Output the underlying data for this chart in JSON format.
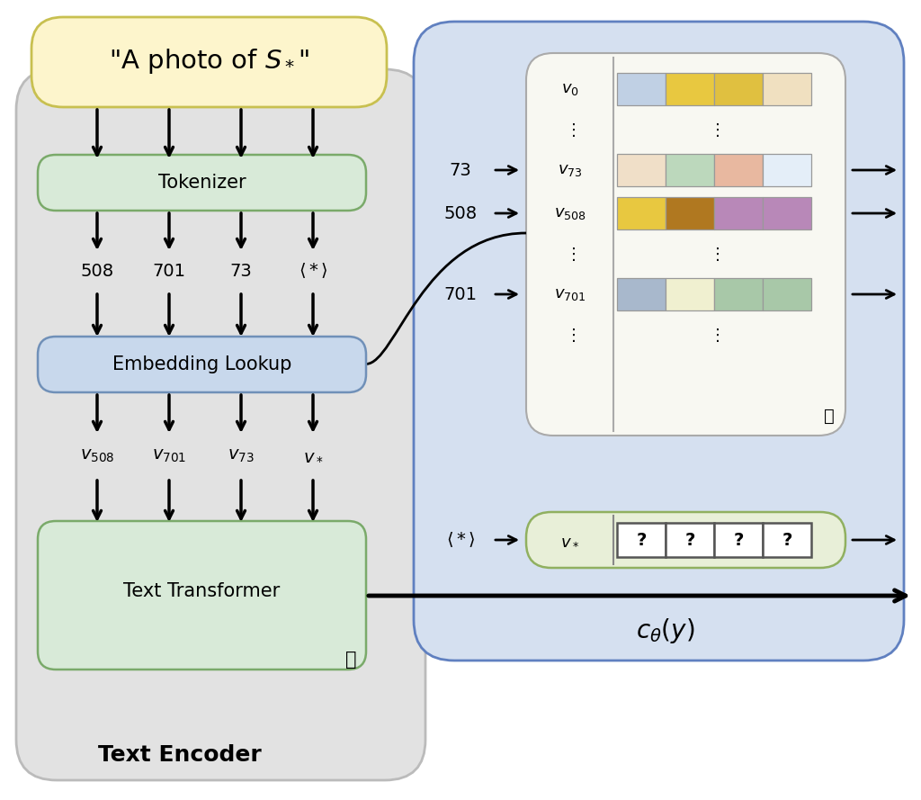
{
  "bg_color": "#ffffff",
  "text_encoder_bg": "#e2e2e2",
  "text_encoder_border": "#bbbbbb",
  "tokenizer_color": "#d8ead8",
  "tokenizer_border": "#7aaa6a",
  "embedding_color": "#c8d8ec",
  "embedding_border": "#7090b8",
  "text_transformer_color": "#d8ead8",
  "text_transformer_border": "#7aaa6a",
  "prompt_box_color": "#fdf5cc",
  "prompt_box_border": "#c8c050",
  "blue_panel_color": "#d5e0f0",
  "blue_panel_border": "#6080c0",
  "embed_table_bg": "#f8f8f2",
  "embed_table_border": "#aaaaaa",
  "v_star_box_color": "#e8efd8",
  "v_star_box_border": "#90b060",
  "v0_colors": [
    "#c0d0e4",
    "#e8c840",
    "#e0c040",
    "#f0e0c0"
  ],
  "v73_colors": [
    "#f0dfc8",
    "#bcd8bc",
    "#e8b8a0",
    "#e4eef8"
  ],
  "v508_colors": [
    "#e8c840",
    "#b07820",
    "#b888b8",
    "#b888b8"
  ],
  "v701_colors": [
    "#a8b8cc",
    "#f0f0d0",
    "#a8c8a8",
    "#a8c8a8"
  ],
  "tokenizer_label": "Tokenizer",
  "embedding_label": "Embedding Lookup",
  "text_transformer_label": "Text Transformer",
  "text_encoder_label": "Text Encoder",
  "c_theta_label": "$c_{\\theta}(y)$"
}
